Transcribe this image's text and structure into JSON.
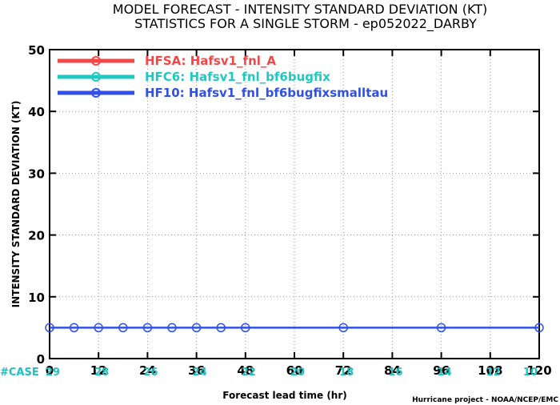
{
  "chart_data": {
    "type": "line",
    "title": "MODEL FORECAST - INTENSITY STANDARD DEVIATION (KT)",
    "subtitle": "STATISTICS FOR A SINGLE STORM - ep052022_DARBY",
    "xlabel": "Forecast lead time (hr)",
    "ylabel": "INTENSITY STANDARD DEVIATION (KT)",
    "xlim": [
      0,
      120
    ],
    "ylim": [
      0,
      50
    ],
    "x_ticks": [
      0,
      12,
      24,
      36,
      48,
      60,
      72,
      84,
      96,
      108,
      120
    ],
    "y_ticks": [
      0,
      10,
      20,
      30,
      40,
      50
    ],
    "grid": "dotted",
    "legend_placement": "top-left",
    "series": [
      {
        "name": "HFSA: Hafsv1_fnl_A",
        "color": "#f04848",
        "x": [],
        "y": []
      },
      {
        "name": "HFC6: Hafsv1_fnl_bf6bugfix",
        "color": "#20c8c0",
        "x": [],
        "y": []
      },
      {
        "name": "HF10: Hafsv1_fnl_bf6bugfixsmalltau",
        "color": "#3050e8",
        "x": [
          0,
          6,
          12,
          18,
          24,
          30,
          36,
          42,
          48,
          72,
          96,
          120
        ],
        "y": [
          5,
          5,
          5,
          5,
          5,
          5,
          5,
          5,
          5,
          5,
          5,
          5
        ]
      }
    ],
    "case_label": "#CASE",
    "case_counts": [
      {
        "x": 0,
        "count": "29"
      },
      {
        "x": 12,
        "count": "28"
      },
      {
        "x": 24,
        "count": "26"
      },
      {
        "x": 36,
        "count": "24"
      },
      {
        "x": 48,
        "count": "22"
      },
      {
        "x": 60,
        "count": "20"
      },
      {
        "x": 72,
        "count": "18"
      },
      {
        "x": 84,
        "count": "16"
      },
      {
        "x": 96,
        "count": "14"
      },
      {
        "x": 108,
        "count": "12"
      },
      {
        "x": 120,
        "count": "10"
      }
    ],
    "credit": "Hurricane project - NOAA/NCEP/EMC"
  }
}
